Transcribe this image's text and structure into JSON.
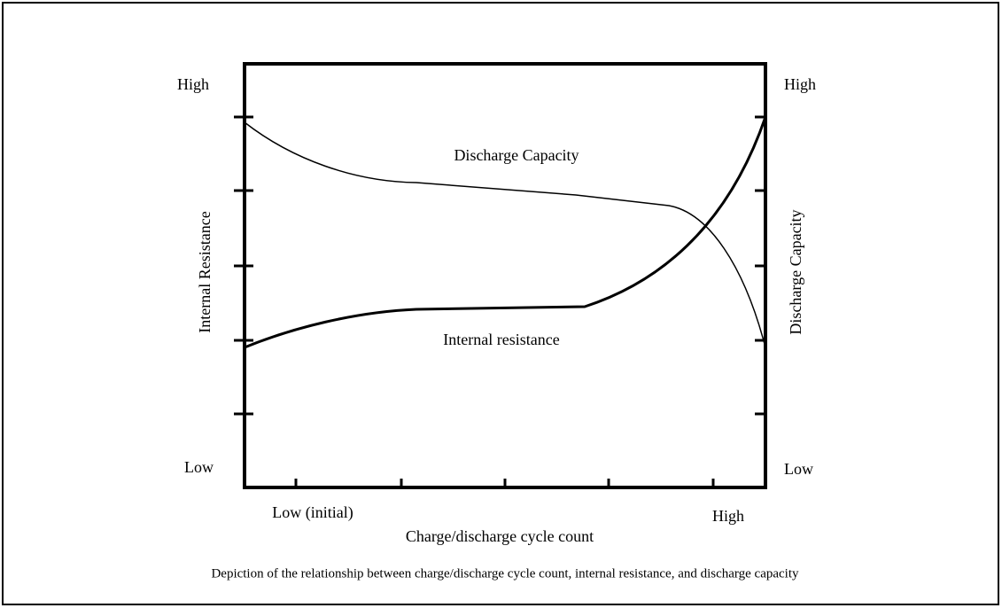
{
  "left_axis": {
    "label": "Internal Resistance",
    "high": "High",
    "low": "Low"
  },
  "right_axis": {
    "label": "Discharge Capacity",
    "high": "High",
    "low": "Low"
  },
  "x_axis": {
    "label": "Charge/discharge cycle count",
    "low": "Low (initial)",
    "high": "High"
  },
  "curves": {
    "discharge": "Discharge Capacity",
    "resistance": "Internal resistance"
  },
  "caption": "Depiction of the relationship between charge/discharge cycle count, internal resistance, and discharge capacity"
}
